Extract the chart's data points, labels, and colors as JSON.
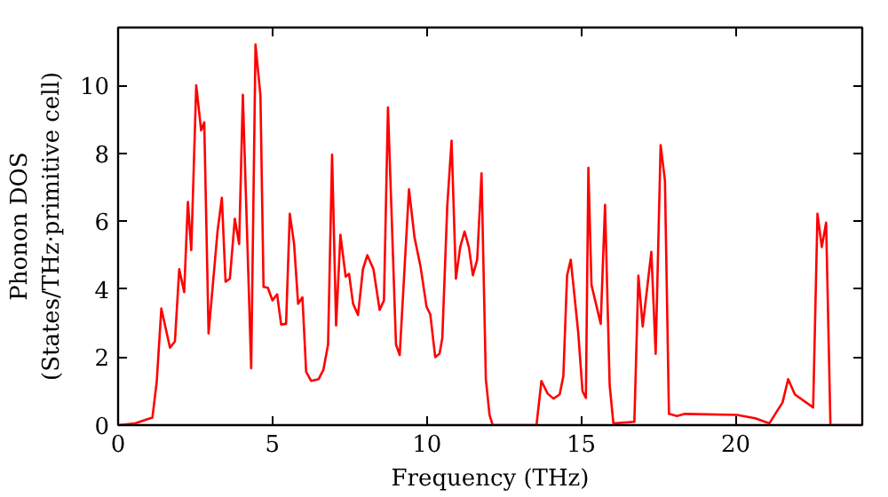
{
  "chart_data": {
    "type": "line",
    "xlabel": "Frequency (THz)",
    "ylabel": "Phonon DOS\n(States/THz·primitive cell)",
    "x": [
      0,
      0.55,
      1.11,
      1.25,
      1.4,
      1.68,
      1.84,
      1.98,
      2.14,
      2.26,
      2.37,
      2.53,
      2.69,
      2.79,
      2.93,
      3.22,
      3.36,
      3.48,
      3.62,
      3.78,
      3.92,
      4.04,
      4.31,
      4.45,
      4.61,
      4.71,
      4.85,
      5.0,
      5.15,
      5.28,
      5.44,
      5.56,
      5.7,
      5.83,
      5.97,
      6.09,
      6.25,
      6.49,
      6.65,
      6.8,
      6.93,
      7.06,
      7.2,
      7.37,
      7.48,
      7.61,
      7.77,
      7.93,
      8.07,
      8.27,
      8.47,
      8.61,
      8.74,
      9.0,
      9.12,
      9.42,
      9.6,
      9.79,
      9.99,
      10.11,
      10.27,
      10.41,
      10.5,
      10.66,
      10.8,
      10.94,
      11.08,
      11.22,
      11.36,
      11.49,
      11.63,
      11.77,
      11.91,
      12.03,
      12.13,
      13.55,
      13.71,
      13.91,
      14.1,
      14.3,
      14.42,
      14.54,
      14.66,
      14.9,
      15.04,
      15.15,
      15.23,
      15.33,
      15.63,
      15.77,
      15.92,
      16.04,
      16.72,
      16.85,
      16.99,
      17.27,
      17.41,
      17.57,
      17.71,
      17.84,
      18.1,
      18.36,
      20.04,
      20.63,
      21.09,
      21.52,
      21.7,
      21.92,
      22.51,
      22.65,
      22.79,
      22.93,
      23.07,
      24.1
    ],
    "series": [
      {
        "color": "#ff0000",
        "values": [
          0,
          0.05,
          0.22,
          1.26,
          3.43,
          2.28,
          2.46,
          4.59,
          3.91,
          6.57,
          5.15,
          10.0,
          8.67,
          8.91,
          2.7,
          5.7,
          6.69,
          4.22,
          4.31,
          6.07,
          5.33,
          9.72,
          1.67,
          11.2,
          9.69,
          4.07,
          4.04,
          3.67,
          3.85,
          2.96,
          2.98,
          6.22,
          5.33,
          3.57,
          3.76,
          1.57,
          1.3,
          1.35,
          1.63,
          2.37,
          7.96,
          2.93,
          5.6,
          4.37,
          4.45,
          3.57,
          3.24,
          4.59,
          5.0,
          4.59,
          3.39,
          3.67,
          9.35,
          2.37,
          2.06,
          6.94,
          5.52,
          4.69,
          3.48,
          3.26,
          2.0,
          2.1,
          2.56,
          6.44,
          8.37,
          4.31,
          5.24,
          5.7,
          5.24,
          4.41,
          4.87,
          7.41,
          1.35,
          0.3,
          0,
          0,
          1.3,
          0.93,
          0.78,
          0.9,
          1.44,
          4.4,
          4.87,
          2.74,
          1.0,
          0.8,
          7.57,
          4.13,
          2.98,
          6.48,
          1.17,
          0.05,
          0.1,
          4.4,
          2.9,
          5.1,
          2.1,
          8.24,
          7.2,
          0.33,
          0.27,
          0.33,
          0.3,
          0.2,
          0.05,
          0.67,
          1.35,
          0.9,
          0.52,
          6.22,
          5.24,
          5.96,
          0,
          0
        ]
      }
    ],
    "xlim": [
      0,
      24.1
    ],
    "ylim": [
      0,
      11.7
    ],
    "xticks": [
      0,
      5,
      10,
      15,
      20
    ],
    "yticks": [
      0,
      2,
      4,
      6,
      8,
      10
    ],
    "grid": false
  }
}
